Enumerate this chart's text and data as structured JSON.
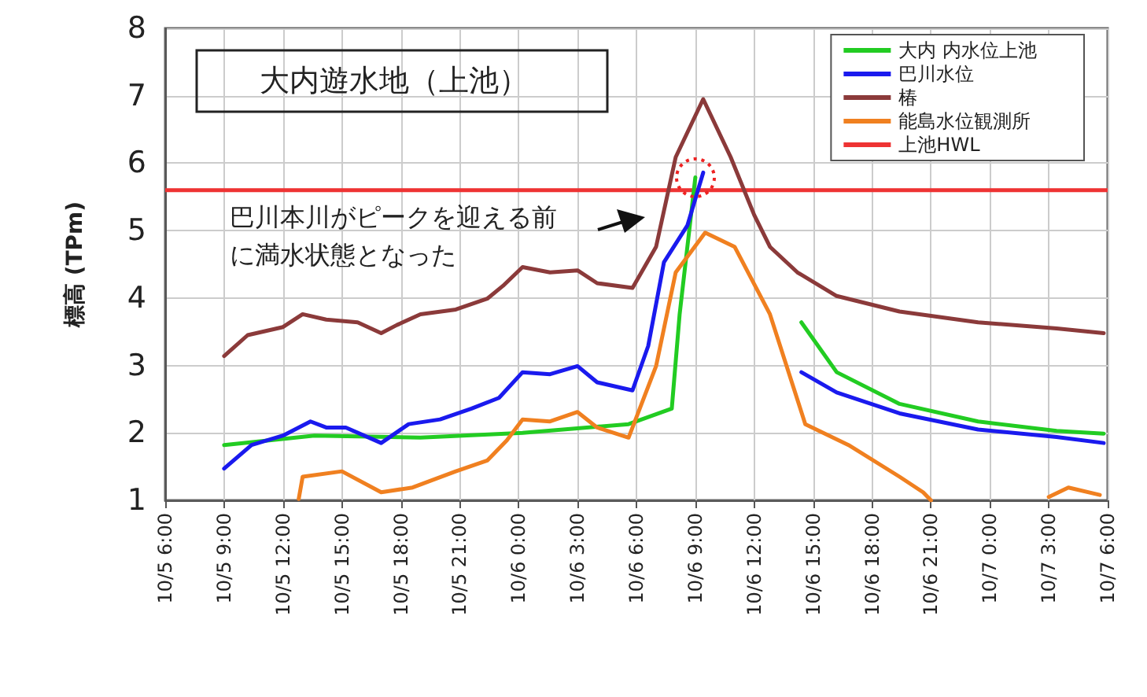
{
  "chart_data": {
    "type": "line",
    "title": "大内遊水地（上池）",
    "ylabel": "標高 (TPm)",
    "xlim": [
      "--10-05T06:00",
      "--10-07T06:00"
    ],
    "xticks": [
      {
        "value": "--10-05T06:00",
        "label": "10/5 6:00"
      },
      {
        "value": "--10-05T09:00",
        "label": "10/5 9:00"
      },
      {
        "value": "--10-05T12:00",
        "label": "10/5 12:00"
      },
      {
        "value": "--10-05T15:00",
        "label": "10/5 15:00"
      },
      {
        "value": "--10-05T18:00",
        "label": "10/5 18:00"
      },
      {
        "value": "--10-05T21:00",
        "label": "10/5 21:00"
      },
      {
        "value": "--10-06T00:00",
        "label": "10/6 0:00"
      },
      {
        "value": "--10-06T03:00",
        "label": "10/6 3:00"
      },
      {
        "value": "--10-06T06:00",
        "label": "10/6 6:00"
      },
      {
        "value": "--10-06T09:00",
        "label": "10/6 9:00"
      },
      {
        "value": "--10-06T12:00",
        "label": "10/6 12:00"
      },
      {
        "value": "--10-06T15:00",
        "label": "10/6 15:00"
      },
      {
        "value": "--10-06T18:00",
        "label": "10/6 18:00"
      },
      {
        "value": "--10-06T21:00",
        "label": "10/6 21:00"
      },
      {
        "value": "--10-07T00:00",
        "label": "10/7 0:00"
      },
      {
        "value": "--10-07T03:00",
        "label": "10/7 3:00"
      },
      {
        "value": "--10-07T06:00",
        "label": "10/7 6:00"
      }
    ],
    "ylim": [
      1,
      8
    ],
    "yticks": [
      1,
      2,
      3,
      4,
      5,
      6,
      7,
      8
    ],
    "grid": true,
    "legend": "top right",
    "marker": "none",
    "line_style": "solid",
    "series": [
      {
        "name": "大内 内水位上池",
        "color": "#22cc22",
        "x": [
          "--10-05T09:00",
          "--10-05T13:36",
          "--10-05T19:00",
          "--10-06T00:12",
          "--10-06T05:36",
          "--10-06T07:48",
          "--10-06T08:12",
          "--10-06T09:00",
          "--10-06T11:30",
          "--10-06T14:24",
          "--10-06T16:12",
          "--10-06T19:24",
          "--10-06T23:24",
          "--10-07T03:24",
          "--10-07T05:48"
        ],
        "values": [
          1.82,
          1.96,
          1.93,
          2.0,
          2.13,
          2.36,
          3.76,
          5.79,
          null,
          3.64,
          2.9,
          2.43,
          2.17,
          2.03,
          1.99
        ]
      },
      {
        "name": "巴川水位",
        "color": "#1a1aee",
        "x": [
          "--10-05T09:00",
          "--10-05T10:24",
          "--10-05T12:00",
          "--10-05T13:24",
          "--10-05T14:12",
          "--10-05T15:12",
          "--10-05T17:00",
          "--10-05T18:24",
          "--10-05T20:00",
          "--10-05T21:36",
          "--10-05T23:00",
          "--10-06T00:12",
          "--10-06T01:36",
          "--10-06T03:00",
          "--10-06T04:00",
          "--10-06T05:48",
          "--10-06T06:36",
          "--10-06T07:24",
          "--10-06T08:36",
          "--10-06T09:24",
          "--10-06T11:30",
          "--10-06T14:24",
          "--10-06T16:12",
          "--10-06T19:24",
          "--10-06T23:24",
          "--10-07T03:24",
          "--10-07T05:48"
        ],
        "values": [
          1.47,
          1.82,
          1.96,
          2.17,
          2.08,
          2.08,
          1.85,
          2.13,
          2.2,
          2.36,
          2.52,
          2.9,
          2.87,
          2.99,
          2.75,
          2.63,
          3.29,
          4.53,
          5.08,
          5.86,
          null,
          2.9,
          2.6,
          2.29,
          2.05,
          1.94,
          1.85
        ]
      },
      {
        "name": "椿",
        "color": "#8b3a3a",
        "x": [
          "--10-05T09:00",
          "--10-05T10:12",
          "--10-05T12:00",
          "--10-05T13:00",
          "--10-05T14:12",
          "--10-05T15:48",
          "--10-05T17:00",
          "--10-05T17:48",
          "--10-05T19:00",
          "--10-05T20:48",
          "--10-05T22:24",
          "--10-05T23:12",
          "--10-06T00:12",
          "--10-06T01:36",
          "--10-06T03:00",
          "--10-06T04:00",
          "--10-06T05:48",
          "--10-06T07:00",
          "--10-06T08:00",
          "--10-06T09:24",
          "--10-06T10:48",
          "--10-06T12:00",
          "--10-06T12:48",
          "--10-06T14:12",
          "--10-06T16:12",
          "--10-06T19:24",
          "--10-06T23:24",
          "--10-07T03:24",
          "--10-07T05:48"
        ],
        "values": [
          3.14,
          3.45,
          3.57,
          3.76,
          3.68,
          3.64,
          3.48,
          3.6,
          3.76,
          3.83,
          3.99,
          4.18,
          4.46,
          4.38,
          4.41,
          4.22,
          4.15,
          4.76,
          6.09,
          6.95,
          6.09,
          5.23,
          4.76,
          4.38,
          4.03,
          3.8,
          3.64,
          3.55,
          3.48
        ]
      },
      {
        "name": "能島水位観測所",
        "color": "#f08020",
        "x": [
          "--10-05T12:48",
          "--10-05T13:00",
          "--10-05T15:00",
          "--10-05T17:00",
          "--10-05T18:36",
          "--10-05T20:48",
          "--10-05T22:24",
          "--10-05T23:24",
          "--10-06T00:12",
          "--10-06T01:36",
          "--10-06T03:00",
          "--10-06T04:00",
          "--10-06T05:36",
          "--10-06T07:00",
          "--10-06T08:00",
          "--10-06T09:30",
          "--10-06T11:00",
          "--10-06T12:48",
          "--10-06T14:36",
          "--10-06T16:48",
          "--10-06T19:24",
          "--10-06T20:36",
          "--10-06T21:00",
          "--10-07T00:00",
          "--10-07T03:00",
          "--10-07T04:00",
          "--10-07T05:36"
        ],
        "values": [
          1.02,
          1.35,
          1.43,
          1.12,
          1.19,
          1.43,
          1.59,
          1.89,
          2.2,
          2.17,
          2.31,
          2.08,
          1.93,
          2.99,
          4.38,
          4.97,
          4.76,
          3.76,
          2.13,
          1.82,
          1.35,
          1.12,
          1.0,
          null,
          1.05,
          1.19,
          1.08
        ]
      }
    ],
    "ref_lines": [
      {
        "axis": "y",
        "value": 5.6,
        "label": "上池HWL",
        "color": "#ee3333"
      }
    ],
    "annotations": [
      "巴川本川がピークを迎える前に満水状態となった"
    ]
  }
}
